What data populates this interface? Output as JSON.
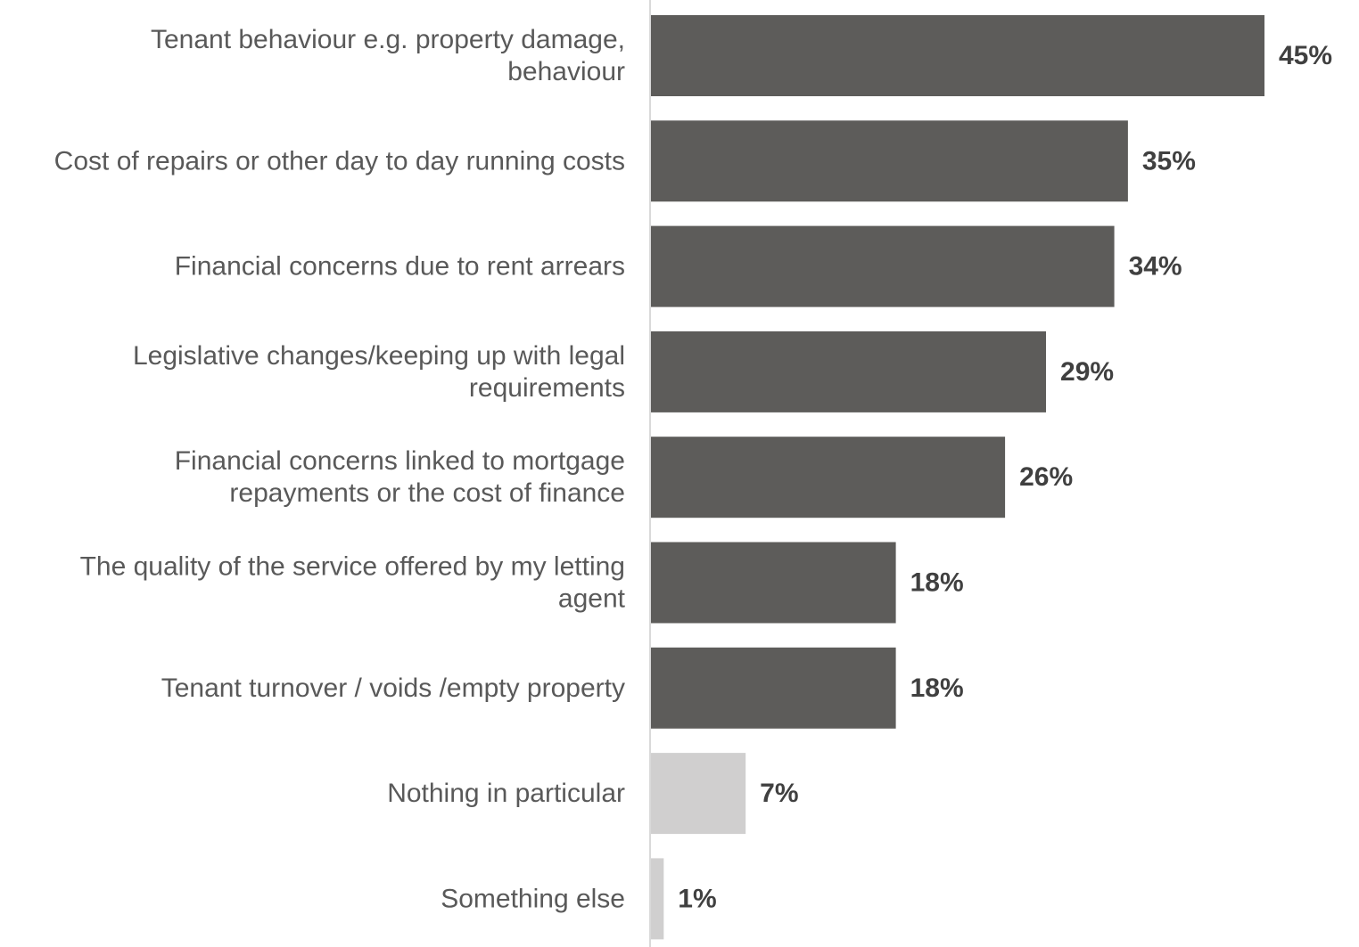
{
  "chart_data": {
    "type": "bar",
    "orientation": "horizontal",
    "title": "",
    "xlabel": "",
    "ylabel": "",
    "xlim": [
      0,
      45
    ],
    "grid": false,
    "legend": "none",
    "categories": [
      [
        "Tenant behaviour e.g. property damage,",
        "behaviour"
      ],
      [
        "Cost of repairs or other day to day running costs"
      ],
      [
        "Financial concerns  due to rent arrears"
      ],
      [
        "Legislative changes/keeping up with legal",
        "requirements"
      ],
      [
        "Financial concerns linked to mortgage",
        "repayments or the cost of finance"
      ],
      [
        "The quality of the service offered by my letting",
        "agent"
      ],
      [
        "Tenant turnover / voids /empty property"
      ],
      [
        "Nothing in particular"
      ],
      [
        "Something else"
      ]
    ],
    "values": [
      45,
      35,
      34,
      29,
      26,
      18,
      18,
      7,
      1
    ],
    "value_labels": [
      "45%",
      "35%",
      "34%",
      "29%",
      "26%",
      "18%",
      "18%",
      "7%",
      "1%"
    ],
    "bar_colors": [
      "#5d5c5a",
      "#5d5c5a",
      "#5d5c5a",
      "#5d5c5a",
      "#5d5c5a",
      "#5d5c5a",
      "#5d5c5a",
      "#d0cfcf",
      "#d0cfcf"
    ]
  }
}
